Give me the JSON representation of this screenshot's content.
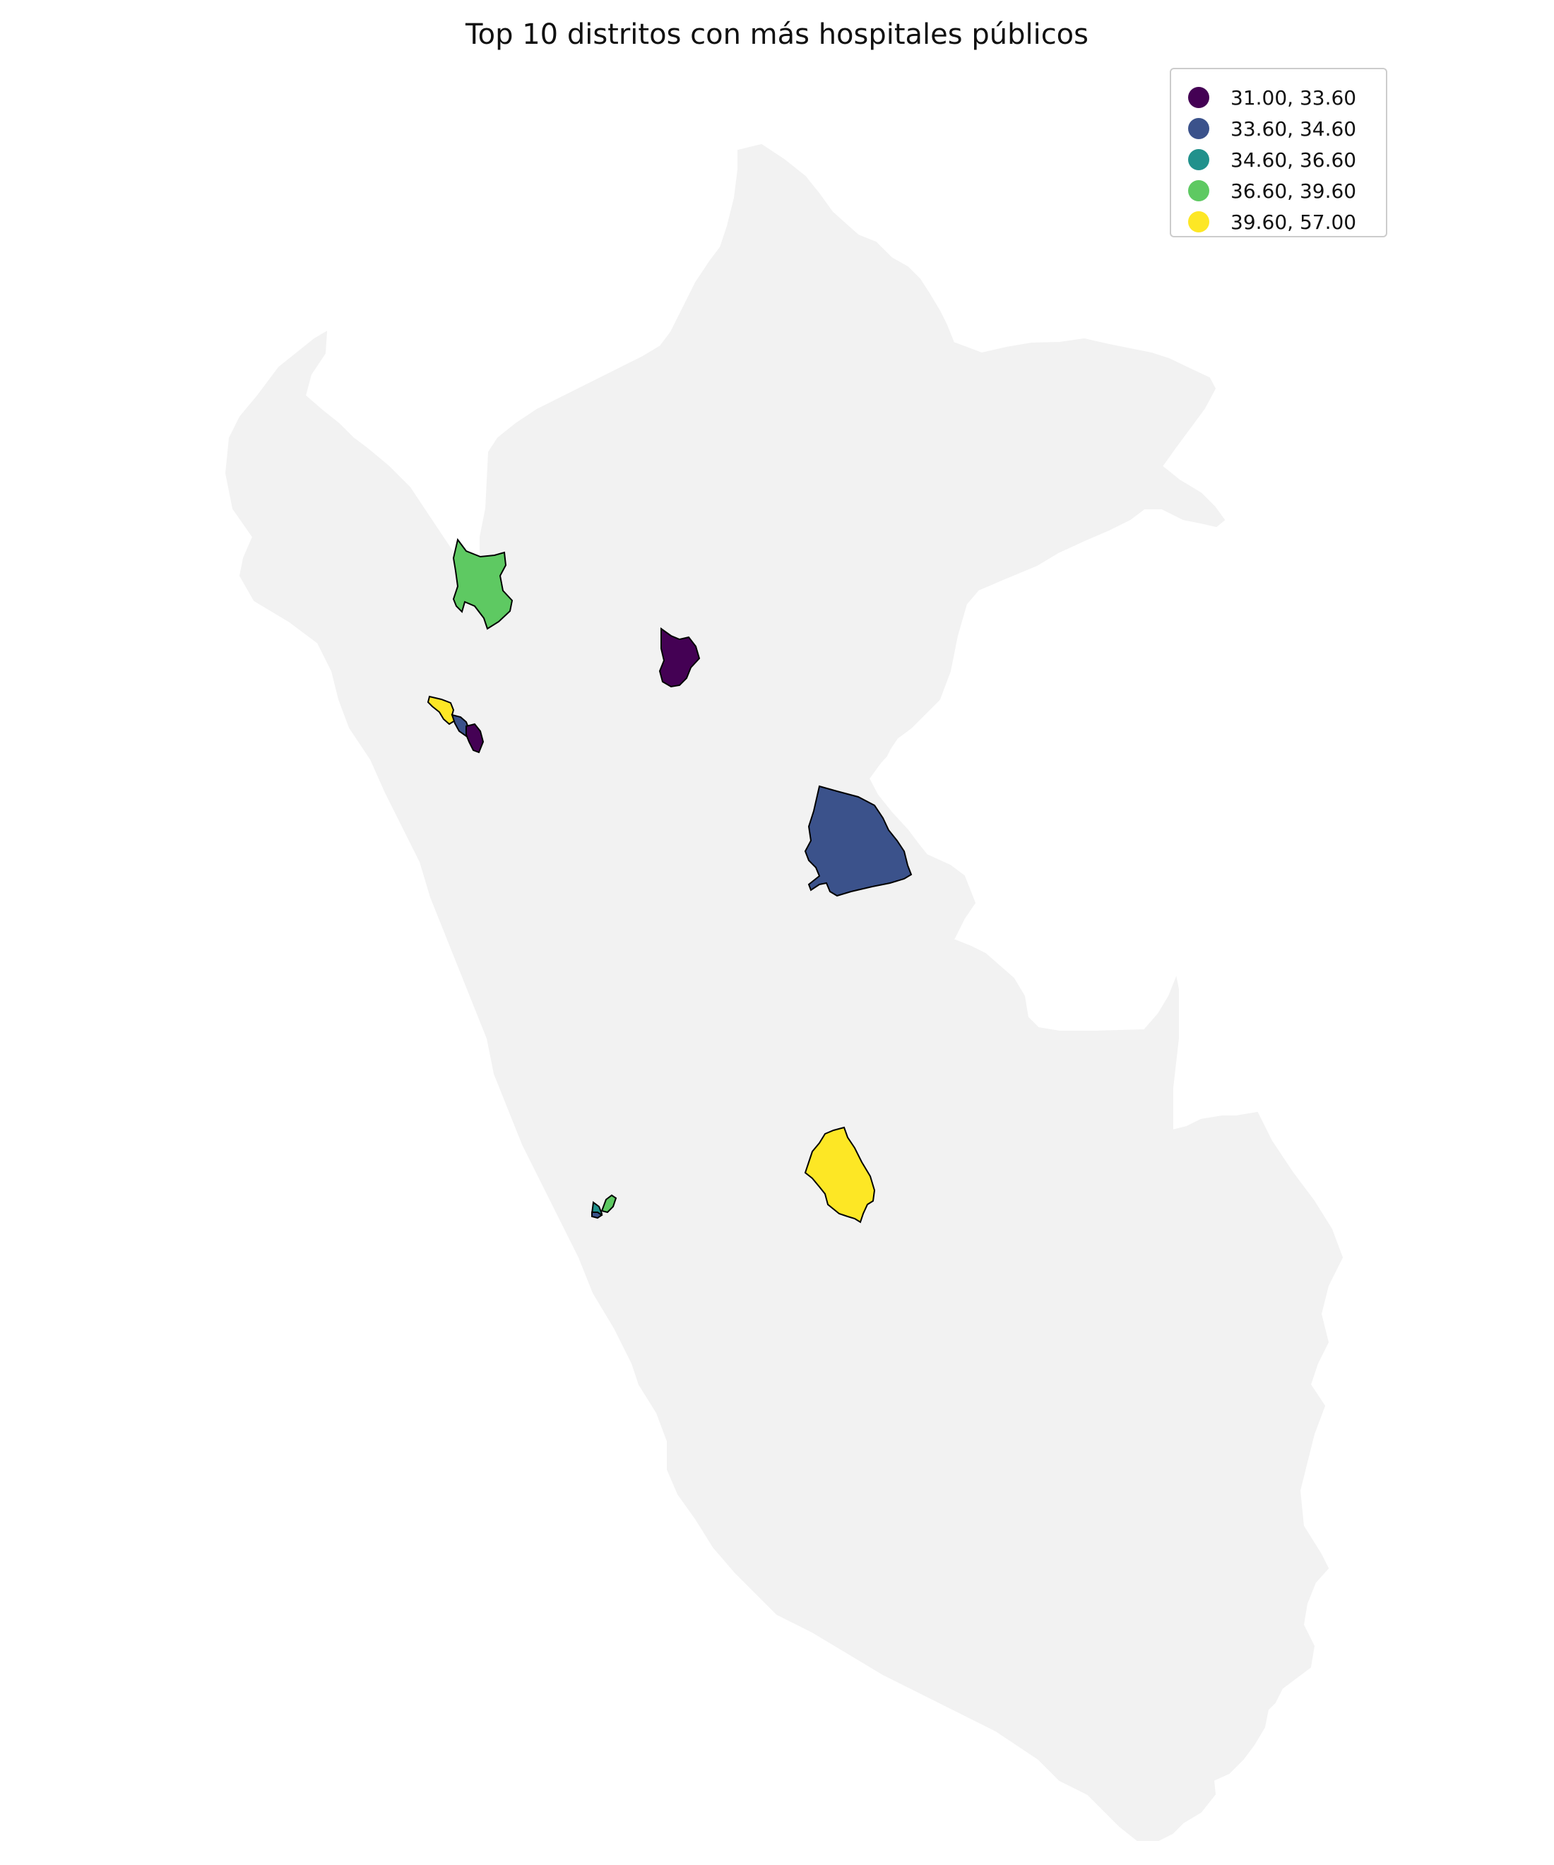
{
  "title": "Top 10 distritos con más hospitales públicos",
  "legend": {
    "items": [
      {
        "label": "31.00, 33.60",
        "color": "#440154"
      },
      {
        "label": "33.60, 34.60",
        "color": "#3b528b"
      },
      {
        "label": "34.60, 36.60",
        "color": "#21918c"
      },
      {
        "label": "36.60, 39.60",
        "color": "#5ec962"
      },
      {
        "label": "39.60, 57.00",
        "color": "#fde725"
      }
    ]
  },
  "colors": {
    "country_fill": "#f2f2f2",
    "district_edge": "#000000",
    "background": "#ffffff"
  },
  "map": {
    "region": "Peru",
    "highlighted_districts": [
      {
        "name": "northwest-green",
        "class": "36.60, 39.60"
      },
      {
        "name": "north-central-purple",
        "class": "31.00, 33.60"
      },
      {
        "name": "north-coast-yellow",
        "class": "39.60, 57.00"
      },
      {
        "name": "north-coast-blue",
        "class": "33.60, 34.60"
      },
      {
        "name": "north-coast-purple",
        "class": "31.00, 33.60"
      },
      {
        "name": "central-east-blue",
        "class": "33.60, 34.60"
      },
      {
        "name": "south-central-yellow",
        "class": "39.60, 57.00"
      },
      {
        "name": "lima-teal",
        "class": "34.60, 36.60"
      },
      {
        "name": "lima-green",
        "class": "36.60, 39.60"
      },
      {
        "name": "lima-blue",
        "class": "33.60, 34.60"
      }
    ]
  }
}
